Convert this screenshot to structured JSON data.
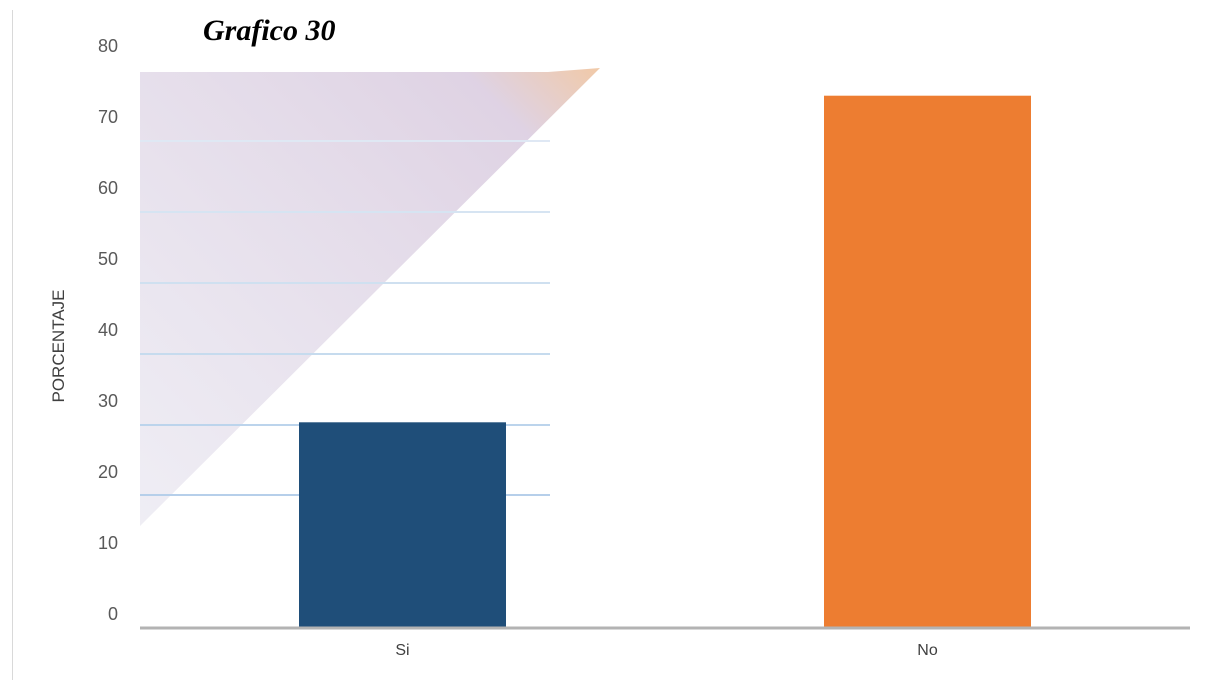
{
  "chart_data": {
    "type": "bar",
    "title": "Grafico 30",
    "xlabel": "",
    "ylabel": "PORCENTAJE",
    "categories": [
      "Si",
      "No"
    ],
    "values": [
      27,
      73
    ],
    "colors": [
      "#1f4e79",
      "#ed7d31"
    ],
    "yticks": [
      0,
      10,
      20,
      30,
      40,
      50,
      60,
      70,
      80
    ],
    "ylim": [
      0,
      80
    ],
    "grid": false,
    "legend": false
  }
}
